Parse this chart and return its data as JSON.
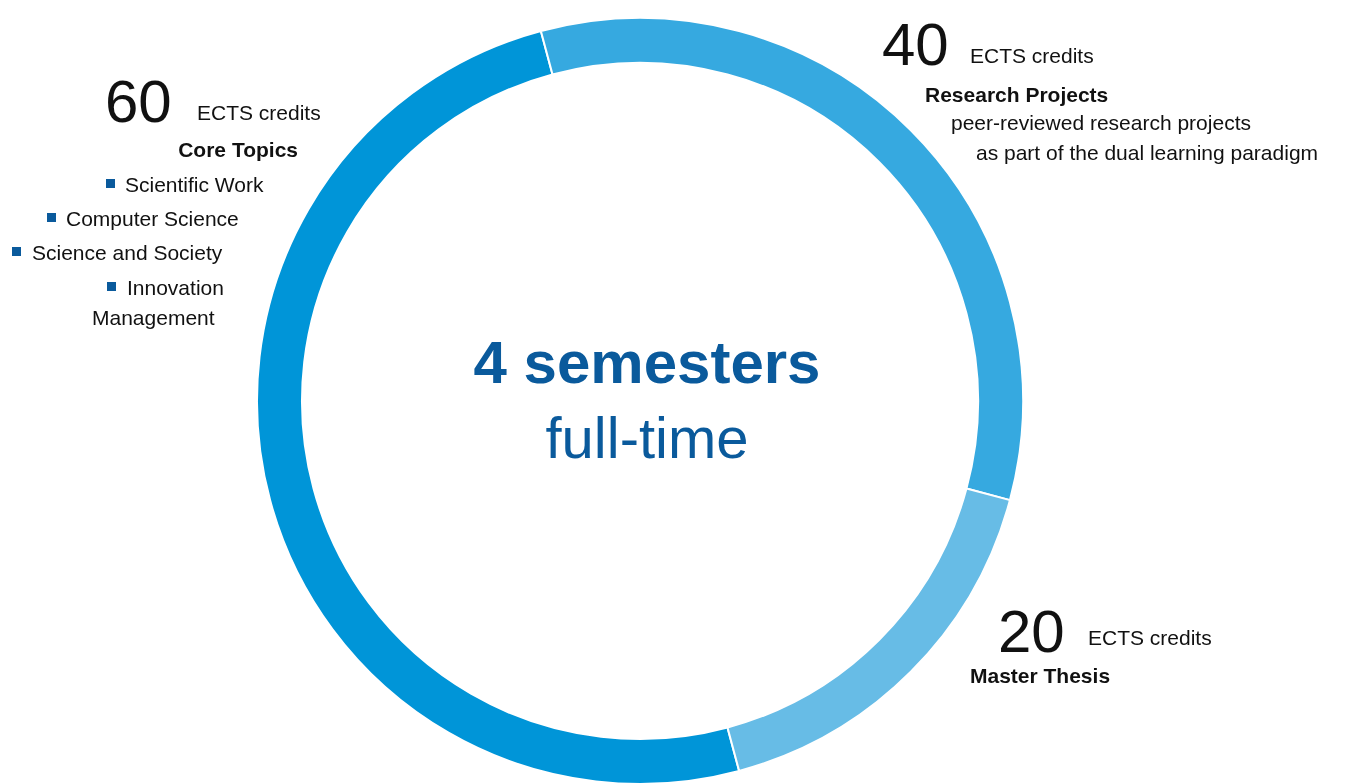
{
  "chart_data": {
    "type": "donut",
    "title": "4 semesters",
    "subtitle": "full-time",
    "categories": [
      "Core Topics",
      "Research Projects",
      "Master Thesis"
    ],
    "values": [
      60,
      40,
      20
    ],
    "colors": [
      "#0095d8",
      "#36a9e0",
      "#67bce6"
    ],
    "data_labels": true,
    "annotations": [
      "ECTS credits",
      "ECTS credits",
      "ECTS credits",
      "Scientific Work",
      "Computer Science",
      "Science and Society",
      "Innovation Management",
      "peer-reviewed research projects",
      "as part of the dual learning paradigm"
    ]
  }
}
